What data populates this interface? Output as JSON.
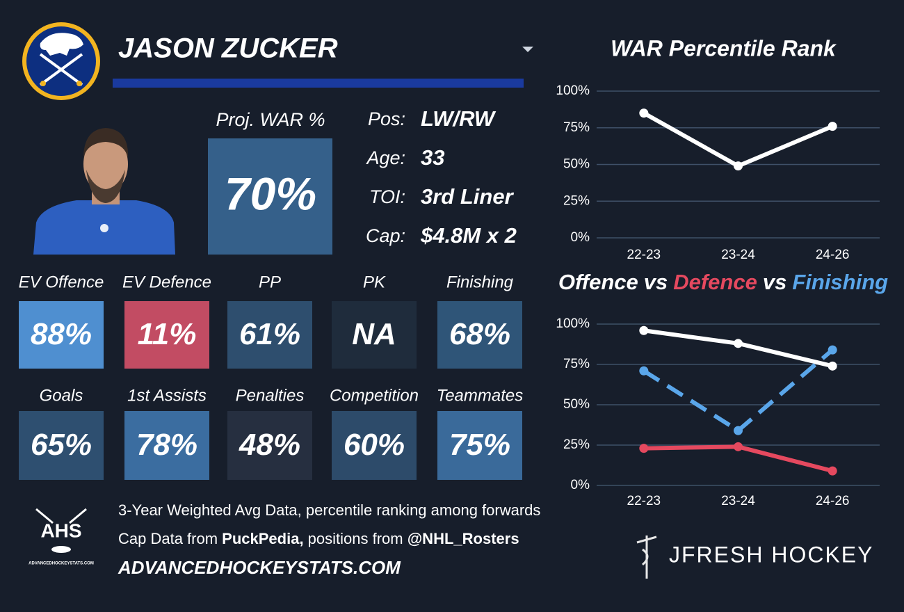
{
  "header": {
    "player_name": "JASON ZUCKER"
  },
  "projection": {
    "label": "Proj. WAR %",
    "value": "70%",
    "color": "#35608a"
  },
  "info": {
    "rows": [
      {
        "label": "Pos:",
        "value": "LW/RW"
      },
      {
        "label": "Age:",
        "value": "33"
      },
      {
        "label": "TOI:",
        "value": "3rd Liner"
      },
      {
        "label": "Cap:",
        "value": "$4.8M x 2"
      }
    ]
  },
  "tiles": {
    "rows": [
      [
        {
          "label": "EV Offence",
          "value": "88%",
          "color": "#4f8fd0"
        },
        {
          "label": "EV Defence",
          "value": "11%",
          "color": "#c24c63"
        },
        {
          "label": "PP",
          "value": "61%",
          "color": "#2e4e6e"
        },
        {
          "label": "PK",
          "value": "NA",
          "color": "#1f2c3c"
        },
        {
          "label": "Finishing",
          "value": "68%",
          "color": "#2f5578"
        }
      ],
      [
        {
          "label": "Goals",
          "value": "65%",
          "color": "#2e4f70"
        },
        {
          "label": "1st Assists",
          "value": "78%",
          "color": "#3b6da0"
        },
        {
          "label": "Penalties",
          "value": "48%",
          "color": "#262f40"
        },
        {
          "label": "Competition",
          "value": "60%",
          "color": "#2d4b6a"
        },
        {
          "label": "Teammates",
          "value": "75%",
          "color": "#3a6a9a"
        }
      ]
    ]
  },
  "footer": {
    "note": "3-Year Weighted Avg Data, percentile ranking among forwards",
    "sources": [
      "Cap Data from ",
      "PuckPedia,",
      " positions from ",
      "@NHL_Rosters"
    ],
    "website": "ADVANCEDHOCKEYSTATS.COM",
    "ahs_logo": {
      "text": "AHS",
      "caption": "ADVANCEDHOCKEYSTATS.COM"
    },
    "brand": "JFRESH HOCKEY"
  },
  "chart_data": [
    {
      "type": "line",
      "title": "WAR Percentile Rank",
      "categories": [
        "22-23",
        "23-24",
        "24-26"
      ],
      "values": [
        85,
        49,
        76
      ],
      "color": "#ffffff",
      "ylim": [
        0,
        100
      ],
      "yticks": [
        {
          "value": 0,
          "label": "0%"
        },
        {
          "value": 25,
          "label": "25%"
        },
        {
          "value": 50,
          "label": "50%"
        },
        {
          "value": 75,
          "label": "75%"
        },
        {
          "value": 100,
          "label": "100%"
        }
      ],
      "grid": true
    },
    {
      "type": "line",
      "title_joiner": "vs",
      "categories": [
        "22-23",
        "23-24",
        "24-26"
      ],
      "series": [
        {
          "name": "Offence",
          "color": "#ffffff",
          "values": [
            96,
            88,
            74
          ]
        },
        {
          "name": "Defence",
          "color": "#e5495f",
          "values": [
            23,
            24,
            9
          ]
        },
        {
          "name": "Finishing",
          "color": "#5aa6ea",
          "values": [
            71,
            34,
            84
          ],
          "line_style": "dashed"
        }
      ],
      "ylim": [
        0,
        100
      ],
      "yticks": [
        {
          "value": 0,
          "label": "0%"
        },
        {
          "value": 25,
          "label": "25%"
        },
        {
          "value": 50,
          "label": "50%"
        },
        {
          "value": 75,
          "label": "75%"
        },
        {
          "value": 100,
          "label": "100%"
        }
      ],
      "grid": true
    }
  ]
}
